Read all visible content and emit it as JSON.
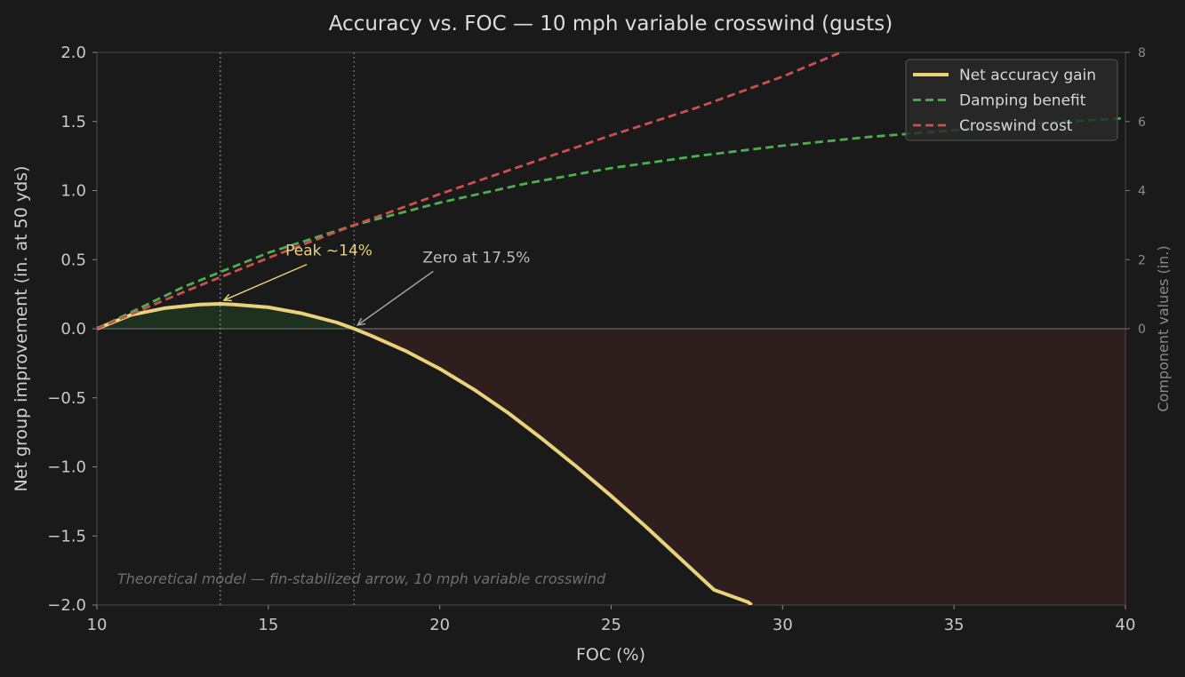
{
  "chart_data": {
    "type": "line",
    "title": "Accuracy vs. FOC — 10 mph variable crosswind (gusts)",
    "xlabel": "FOC (%)",
    "ylabel": "Net group improvement (in. at 50 yds)",
    "y2label": "Component values (in.)",
    "xlim": [
      10,
      40
    ],
    "ylim": [
      -2.0,
      2.0
    ],
    "y2lim": [
      -8,
      8
    ],
    "x_ticks": [
      10,
      15,
      20,
      25,
      30,
      35,
      40
    ],
    "x_tick_labels": [
      "10",
      "15",
      "20",
      "25",
      "30",
      "35",
      "40"
    ],
    "y_ticks": [
      -2.0,
      -1.5,
      -1.0,
      -0.5,
      0.0,
      0.5,
      1.0,
      1.5,
      2.0
    ],
    "y_tick_labels": [
      "−2.0",
      "−1.5",
      "−1.0",
      "−0.5",
      "0.0",
      "0.5",
      "1.0",
      "1.5",
      "2.0"
    ],
    "y2_ticks": [
      0,
      2,
      4,
      6,
      8
    ],
    "y2_tick_labels": [
      "0",
      "2",
      "4",
      "6",
      "8"
    ],
    "grid": false,
    "legend_position": "top-right",
    "series": [
      {
        "name": "Net accuracy gain",
        "axis": "left",
        "color": "#ead27a",
        "style": "solid",
        "x": [
          10,
          11,
          12,
          13,
          13.6,
          14,
          15,
          16,
          17,
          17.5,
          18,
          19,
          20,
          21,
          22,
          23,
          24,
          25,
          26,
          27,
          28,
          29,
          29.1
        ],
        "y": [
          0.0,
          0.1,
          0.15,
          0.175,
          0.18,
          0.175,
          0.155,
          0.11,
          0.045,
          0.0,
          -0.05,
          -0.16,
          -0.29,
          -0.44,
          -0.61,
          -0.8,
          -1.0,
          -1.21,
          -1.43,
          -1.66,
          -1.89,
          -1.98,
          -2.0
        ]
      },
      {
        "name": "Damping benefit",
        "axis": "right",
        "color": "#4caf50",
        "style": "dashed",
        "x": [
          10,
          12.5,
          15,
          17.5,
          20,
          22.5,
          25,
          27.5,
          30,
          32.5,
          35,
          37.5,
          40
        ],
        "y": [
          0.0,
          1.2,
          2.2,
          3.0,
          3.65,
          4.2,
          4.65,
          5.0,
          5.3,
          5.55,
          5.75,
          5.95,
          6.1
        ]
      },
      {
        "name": "Crosswind cost",
        "axis": "right",
        "color": "#cd4f4f",
        "style": "dashed",
        "x": [
          10,
          12.5,
          15,
          17.5,
          20,
          22.5,
          25,
          27.5,
          30,
          31.7
        ],
        "y": [
          0.0,
          1.05,
          2.05,
          3.0,
          3.9,
          4.75,
          5.6,
          6.4,
          7.3,
          8.0
        ]
      }
    ],
    "vlines": [
      13.6,
      17.5
    ],
    "annotations": [
      {
        "text": "Peak ~14%",
        "x": 13.6,
        "y": 0.18,
        "text_x": 15.5,
        "text_y": 0.53
      },
      {
        "text": "Zero at 17.5%",
        "x": 17.5,
        "y": 0.0,
        "text_x": 19.5,
        "text_y": 0.48
      }
    ],
    "note": "Theoretical model — fin-stabilized arrow, 10 mph variable crosswind",
    "shading": {
      "positive_color": "#1e3020",
      "negative_color": "#2e1e1e"
    }
  }
}
